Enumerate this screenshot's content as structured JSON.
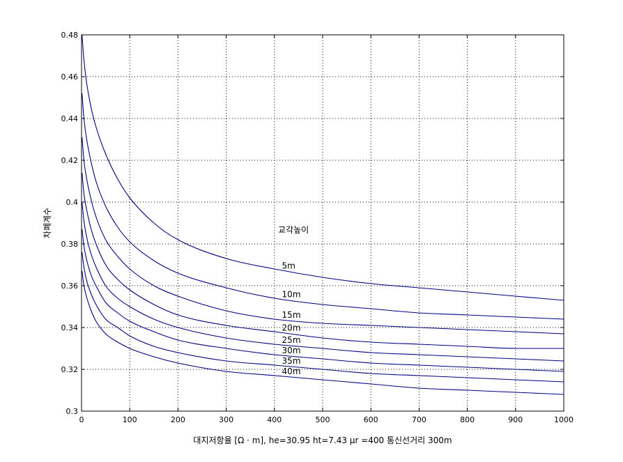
{
  "chart_data": {
    "type": "line",
    "title": "",
    "xlabel": "대지저항율 [Ω · m], he=30.95 ht=7.43 μr =400 통신선거리 300m",
    "ylabel": "차폐계수",
    "xlim": [
      0,
      1000
    ],
    "ylim": [
      0.3,
      0.48
    ],
    "xticks": [
      0,
      100,
      200,
      300,
      400,
      500,
      600,
      700,
      800,
      900,
      1000
    ],
    "yticks": [
      0.3,
      0.32,
      0.34,
      0.36,
      0.38,
      0.4,
      0.42,
      0.44,
      0.46,
      0.48
    ],
    "xtick_labels": [
      "0",
      "100",
      "200",
      "300",
      "400",
      "500",
      "600",
      "700",
      "800",
      "900",
      "1000"
    ],
    "ytick_labels": [
      "0.3",
      "0.32",
      "0.34",
      "0.36",
      "0.38",
      "0.4",
      "0.42",
      "0.44",
      "0.46",
      "0.48"
    ],
    "grid": true,
    "line_color": "#000080",
    "legend_title": "교각높이",
    "x": [
      1,
      5,
      10,
      20,
      30,
      50,
      75,
      100,
      150,
      200,
      300,
      400,
      500,
      600,
      700,
      800,
      900,
      1000
    ],
    "series": [
      {
        "name": "5m",
        "values": [
          0.48,
          0.468,
          0.458,
          0.445,
          0.436,
          0.423,
          0.411,
          0.402,
          0.39,
          0.382,
          0.373,
          0.368,
          0.364,
          0.361,
          0.359,
          0.357,
          0.355,
          0.353
        ]
      },
      {
        "name": "10m",
        "values": [
          0.452,
          0.44,
          0.431,
          0.419,
          0.41,
          0.398,
          0.388,
          0.381,
          0.372,
          0.366,
          0.359,
          0.354,
          0.351,
          0.349,
          0.347,
          0.346,
          0.345,
          0.344
        ]
      },
      {
        "name": "15m",
        "values": [
          0.431,
          0.42,
          0.412,
          0.401,
          0.393,
          0.382,
          0.374,
          0.368,
          0.36,
          0.355,
          0.348,
          0.344,
          0.342,
          0.341,
          0.34,
          0.339,
          0.338,
          0.337
        ]
      },
      {
        "name": "20m",
        "values": [
          0.414,
          0.404,
          0.397,
          0.387,
          0.38,
          0.37,
          0.363,
          0.358,
          0.351,
          0.346,
          0.341,
          0.338,
          0.335,
          0.333,
          0.332,
          0.331,
          0.33,
          0.33
        ]
      },
      {
        "name": "25m",
        "values": [
          0.4,
          0.391,
          0.384,
          0.375,
          0.369,
          0.36,
          0.354,
          0.35,
          0.344,
          0.34,
          0.335,
          0.332,
          0.33,
          0.328,
          0.327,
          0.326,
          0.325,
          0.324
        ]
      },
      {
        "name": "30m",
        "values": [
          0.387,
          0.379,
          0.373,
          0.365,
          0.36,
          0.352,
          0.347,
          0.343,
          0.338,
          0.334,
          0.33,
          0.327,
          0.325,
          0.323,
          0.322,
          0.321,
          0.32,
          0.319
        ]
      },
      {
        "name": "35m",
        "values": [
          0.376,
          0.369,
          0.363,
          0.356,
          0.351,
          0.344,
          0.34,
          0.336,
          0.331,
          0.328,
          0.324,
          0.322,
          0.32,
          0.318,
          0.317,
          0.316,
          0.315,
          0.314
        ]
      },
      {
        "name": "40m",
        "values": [
          0.367,
          0.36,
          0.355,
          0.348,
          0.343,
          0.337,
          0.333,
          0.33,
          0.326,
          0.323,
          0.319,
          0.317,
          0.315,
          0.313,
          0.311,
          0.31,
          0.309,
          0.308
        ]
      }
    ]
  }
}
